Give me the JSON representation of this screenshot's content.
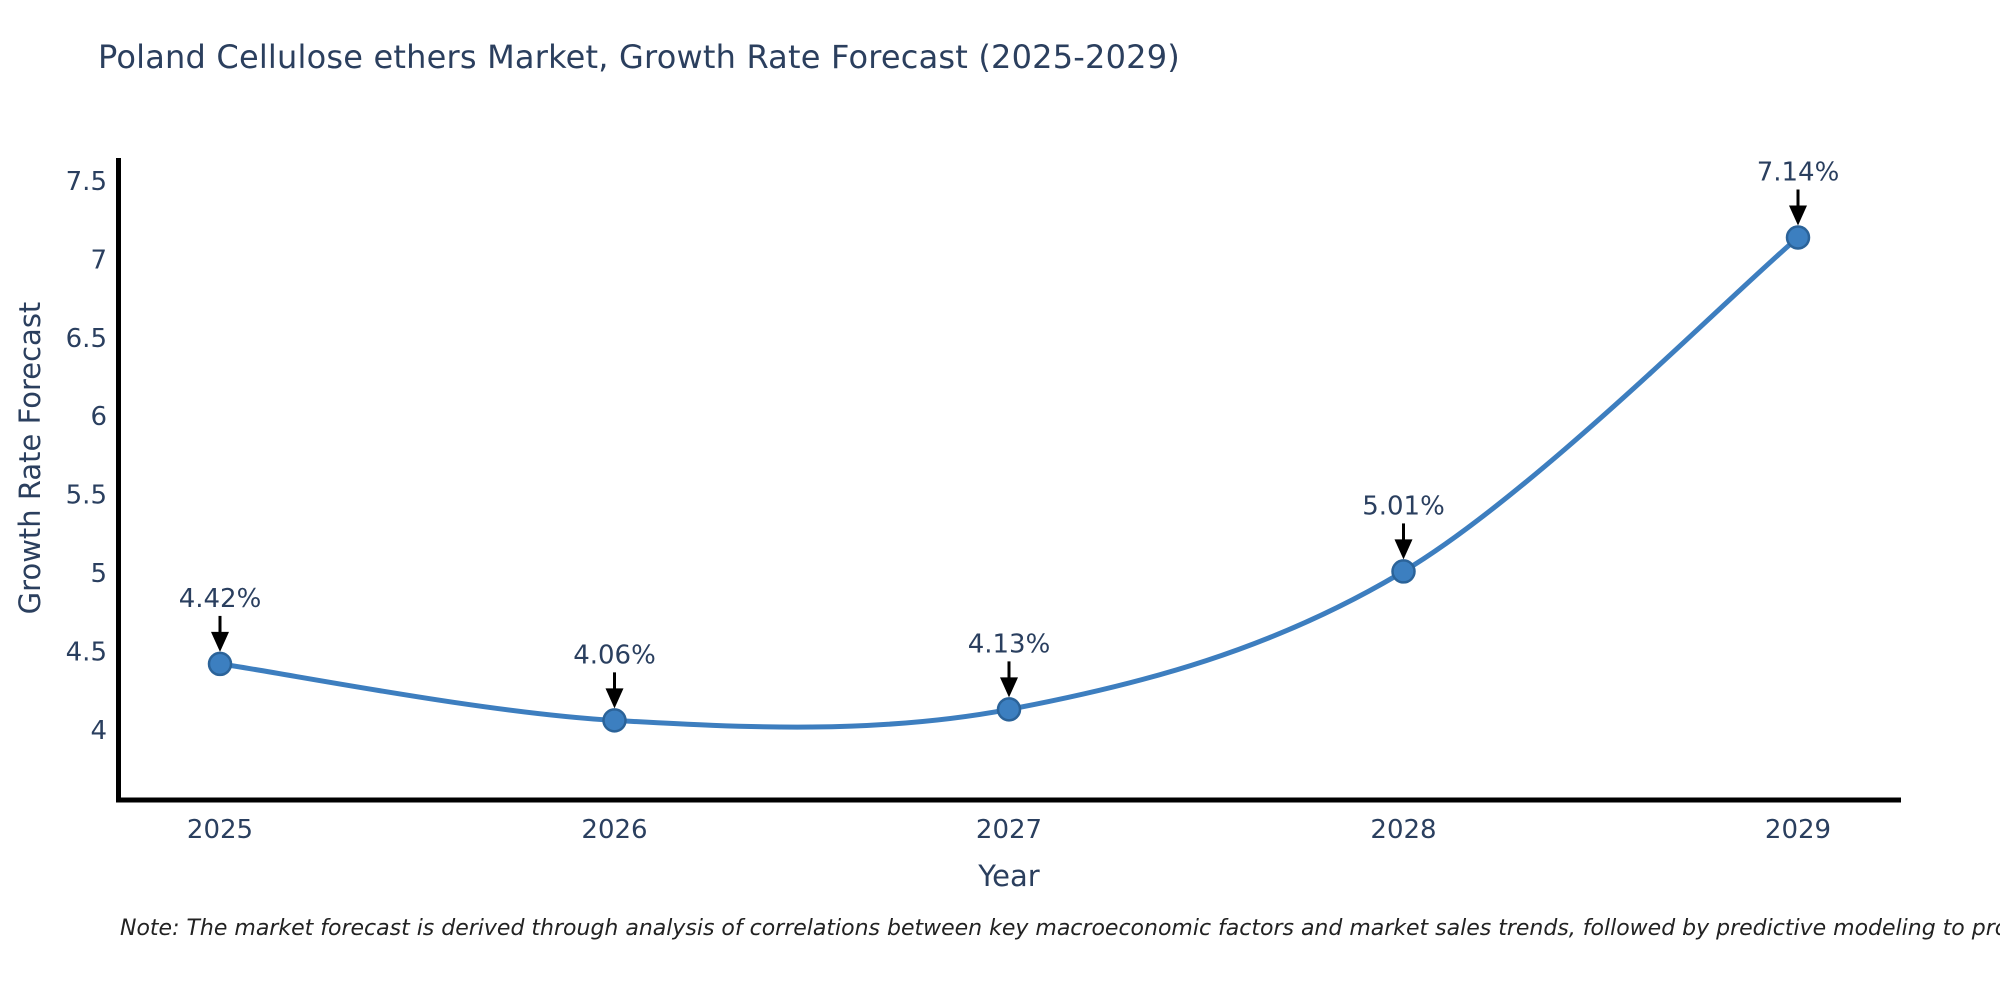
{
  "title": "Poland Cellulose ethers Market, Growth Rate Forecast (2025-2029)",
  "note": "Note: The market forecast is derived through analysis of correlations between key macroeconomic factors and market sales trends, followed by predictive modeling to project future sales",
  "chart_data": {
    "type": "line",
    "title": "Poland Cellulose ethers Market, Growth Rate Forecast (2025-2029)",
    "xlabel": "Year",
    "ylabel": "Growth Rate Forecast",
    "x": [
      "2025",
      "2026",
      "2027",
      "2028",
      "2029"
    ],
    "series": [
      {
        "name": "Growth Rate Forecast",
        "values": [
          4.42,
          4.06,
          4.13,
          5.01,
          7.14
        ]
      }
    ],
    "point_labels": [
      "4.42%",
      "4.06%",
      "4.13%",
      "5.01%",
      "7.14%"
    ],
    "y_ticks": [
      4,
      4.5,
      5,
      5.5,
      6,
      6.5,
      7,
      7.5
    ],
    "ylim": [
      3.552,
      7.647
    ],
    "line_shape": "spline",
    "grid": false,
    "legend_position": "none",
    "colors": {
      "line": "#3d7ebf",
      "marker_fill": "#3c7fc0",
      "marker_edge": "#2b6399",
      "arrow": "#000000",
      "axis": "#000000",
      "tick_text": "#2a3f5f",
      "annotation_text": "#2a3f5f"
    }
  }
}
